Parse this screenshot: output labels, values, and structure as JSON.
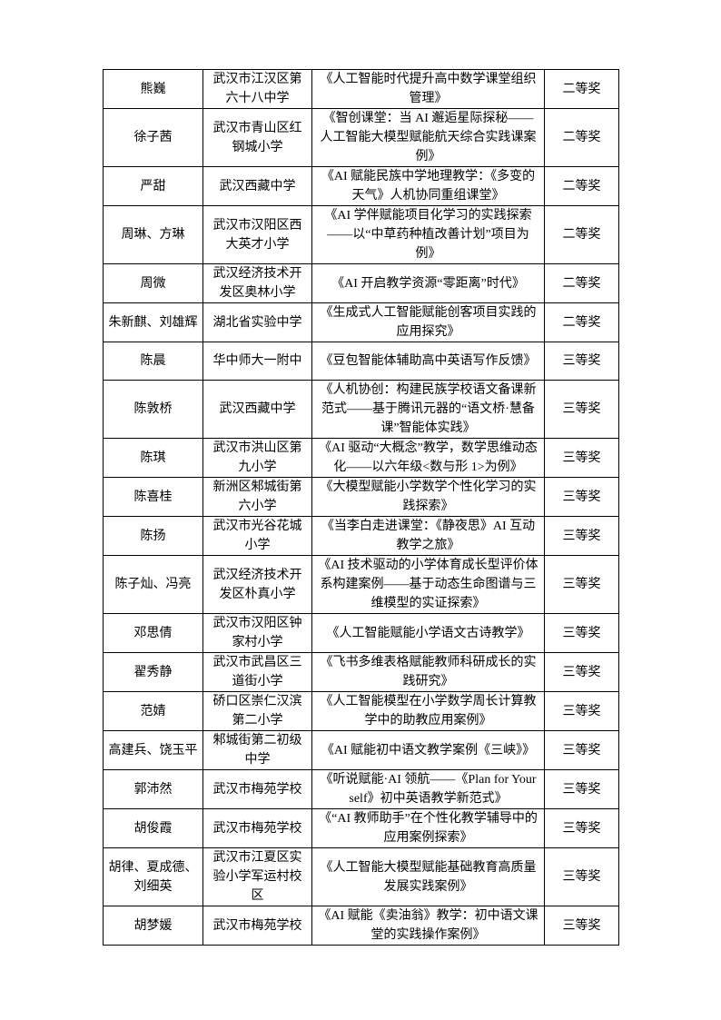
{
  "table": {
    "rows": [
      {
        "name": "熊巍",
        "school": "武汉市江汉区第六十八中学",
        "title": "《人工智能时代提升高中数学课堂组织管理》",
        "award": "二等奖"
      },
      {
        "name": "徐子茜",
        "school": "武汉市青山区红钢城小学",
        "title": "《智创课堂：当 AI 邂逅星际探秘——人工智能大模型赋能航天综合实践课案例》",
        "award": "二等奖"
      },
      {
        "name": "严甜",
        "school": "武汉西藏中学",
        "title": "《AI 赋能民族中学地理教学：《多变的天气》人机协同重组课堂》",
        "award": "二等奖"
      },
      {
        "name": "周琳、方琳",
        "school": "武汉市汉阳区西大英才小学",
        "title": "《AI 学伴赋能项目化学习的实践探索——以“中草药种植改善计划”项目为例》",
        "award": "二等奖"
      },
      {
        "name": "周微",
        "school": "武汉经济技术开发区奥林小学",
        "title": "《AI 开启教学资源“零距离”时代》",
        "award": "二等奖"
      },
      {
        "name": "朱新麒、刘雄辉",
        "school": "湖北省实验中学",
        "title": "《生成式人工智能赋能创客项目实践的应用探究》",
        "award": "二等奖"
      },
      {
        "name": "陈晨",
        "school": "华中师大一附中",
        "title": "《豆包智能体辅助高中英语写作反馈》",
        "award": "三等奖"
      },
      {
        "name": "陈敦桥",
        "school": "武汉西藏中学",
        "title": "《人机协创：构建民族学校语文备课新范式——基于腾讯元器的“语文桥·慧备课”智能体实践》",
        "award": "三等奖"
      },
      {
        "name": "陈琪",
        "school": "武汉市洪山区第九小学",
        "title": "《AI 驱动“大概念”教学，数学思维动态化——以六年级<数与形 1>为例》",
        "award": "三等奖"
      },
      {
        "name": "陈喜桂",
        "school": "新洲区邾城街第六小学",
        "title": "《大模型赋能小学数学个性化学习的实践探索》",
        "award": "三等奖"
      },
      {
        "name": "陈扬",
        "school": "武汉市光谷花城小学",
        "title": "《当李白走进课堂：《静夜思》AI 互动教学之旅》",
        "award": "三等奖"
      },
      {
        "name": "陈子灿、冯亮",
        "school": "武汉经济技术开发区朴真小学",
        "title": "《AI 技术驱动的小学体育成长型评价体系构建案例——基于动态生命图谱与三维模型的实证探索》",
        "award": "三等奖"
      },
      {
        "name": "邓思倩",
        "school": "武汉市汉阳区钟家村小学",
        "title": "《人工智能赋能小学语文古诗教学》",
        "award": "三等奖"
      },
      {
        "name": "翟秀静",
        "school": "武汉市武昌区三道街小学",
        "title": "《飞书多维表格赋能教师科研成长的实践研究》",
        "award": "三等奖"
      },
      {
        "name": "范婧",
        "school": "硚口区崇仁汉滨第二小学",
        "title": "《人工智能模型在小学数学周长计算教学中的助教应用案例》",
        "award": "三等奖"
      },
      {
        "name": "高建兵、饶玉平",
        "school": "邾城街第二初级中学",
        "title": "《AI 赋能初中语文教学案例《三峡》》",
        "award": "三等奖"
      },
      {
        "name": "郭沛然",
        "school": "武汉市梅苑学校",
        "title": "《听说赋能·AI 领航——《Plan for Yourself》初中英语教学新范式》",
        "award": "三等奖"
      },
      {
        "name": "胡俊霞",
        "school": "武汉市梅苑学校",
        "title": "《“AI 教师助手”在个性化教学辅导中的应用案例探索》",
        "award": "三等奖"
      },
      {
        "name": "胡律、夏成德、刘细英",
        "school": "武汉市江夏区实验小学军运村校区",
        "title": "《人工智能大模型赋能基础教育高质量发展实践案例》",
        "award": "三等奖"
      },
      {
        "name": "胡梦媛",
        "school": "武汉市梅苑学校",
        "title": "《AI 赋能《卖油翁》教学：初中语文课堂的实践操作案例》",
        "award": "三等奖"
      }
    ]
  }
}
